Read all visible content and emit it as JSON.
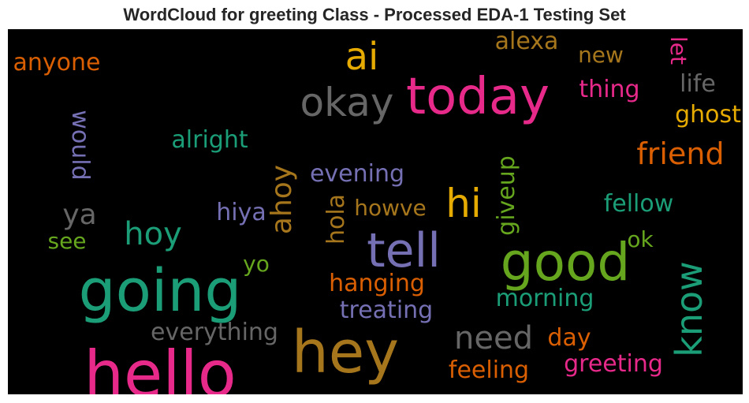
{
  "title": "WordCloud for greeting Class - Processed EDA-1 Testing Set",
  "colors": {
    "background": "#000000",
    "pink": "#e7298a",
    "teal": "#1b9e77",
    "orange": "#d95f02",
    "purple": "#7570b3",
    "green": "#66a61e",
    "yellow": "#e6ab02",
    "brown": "#a6761d",
    "gray": "#666666"
  },
  "words": [
    {
      "text": "hello",
      "color": "#e7298a"
    },
    {
      "text": "hey",
      "color": "#a6761d"
    },
    {
      "text": "going",
      "color": "#1b9e77"
    },
    {
      "text": "today",
      "color": "#e7298a"
    },
    {
      "text": "good",
      "color": "#66a61e"
    },
    {
      "text": "tell",
      "color": "#7570b3"
    },
    {
      "text": "okay",
      "color": "#666666"
    },
    {
      "text": "ai",
      "color": "#e6ab02"
    },
    {
      "text": "hi",
      "color": "#e6ab02"
    },
    {
      "text": "know",
      "color": "#1b9e77"
    },
    {
      "text": "friend",
      "color": "#d95f02"
    },
    {
      "text": "need",
      "color": "#666666"
    },
    {
      "text": "ahoy",
      "color": "#a6761d"
    },
    {
      "text": "hoy",
      "color": "#1b9e77"
    },
    {
      "text": "ya",
      "color": "#666666"
    },
    {
      "text": "anyone",
      "color": "#d95f02"
    },
    {
      "text": "alexa",
      "color": "#a6761d"
    },
    {
      "text": "new",
      "color": "#a6761d"
    },
    {
      "text": "let",
      "color": "#e7298a"
    },
    {
      "text": "thing",
      "color": "#e7298a"
    },
    {
      "text": "life",
      "color": "#666666"
    },
    {
      "text": "ghost",
      "color": "#e6ab02"
    },
    {
      "text": "would",
      "color": "#7570b3"
    },
    {
      "text": "alright",
      "color": "#1b9e77"
    },
    {
      "text": "evening",
      "color": "#7570b3"
    },
    {
      "text": "giveup",
      "color": "#66a61e"
    },
    {
      "text": "fellow",
      "color": "#1b9e77"
    },
    {
      "text": "hiya",
      "color": "#7570b3"
    },
    {
      "text": "hola",
      "color": "#a6761d"
    },
    {
      "text": "howve",
      "color": "#a6761d"
    },
    {
      "text": "see",
      "color": "#66a61e"
    },
    {
      "text": "ok",
      "color": "#66a61e"
    },
    {
      "text": "yo",
      "color": "#66a61e"
    },
    {
      "text": "hanging",
      "color": "#d95f02"
    },
    {
      "text": "morning",
      "color": "#1b9e77"
    },
    {
      "text": "treating",
      "color": "#7570b3"
    },
    {
      "text": "everything",
      "color": "#666666"
    },
    {
      "text": "day",
      "color": "#d95f02"
    },
    {
      "text": "greeting",
      "color": "#e7298a"
    },
    {
      "text": "feeling",
      "color": "#d95f02"
    }
  ]
}
